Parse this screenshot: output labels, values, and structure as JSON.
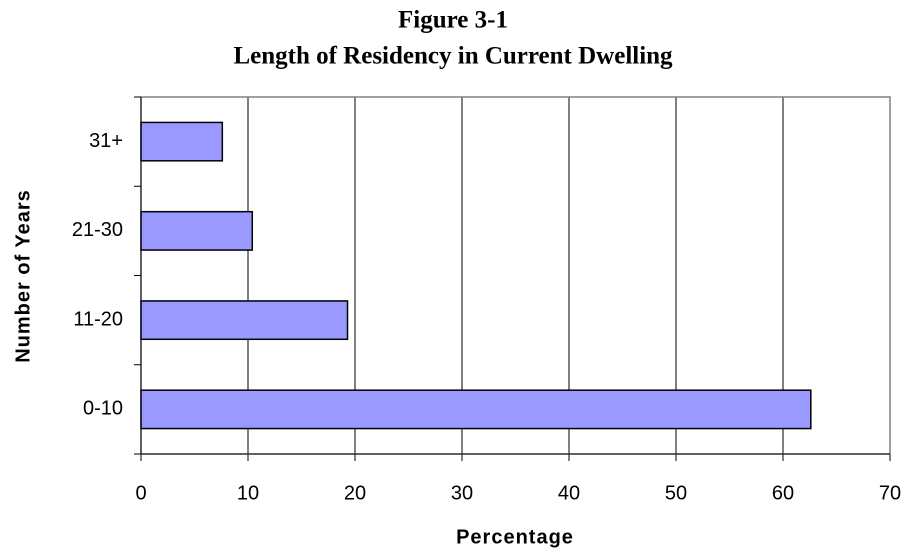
{
  "chart_data": {
    "type": "hbar",
    "title": "Figure 3-1",
    "subtitle": "Length of Residency in Current Dwelling",
    "x_label": "Percentage",
    "y_label": "Number of Years",
    "categories": [
      "0-10",
      "11-20",
      "21-30",
      "31+"
    ],
    "values": [
      62.6,
      19.3,
      10.4,
      7.6
    ],
    "color": "#9999ff",
    "xlim": [
      0,
      70
    ],
    "xticks": [
      0,
      10,
      20,
      30,
      40,
      50,
      60,
      70
    ],
    "grid": true
  }
}
